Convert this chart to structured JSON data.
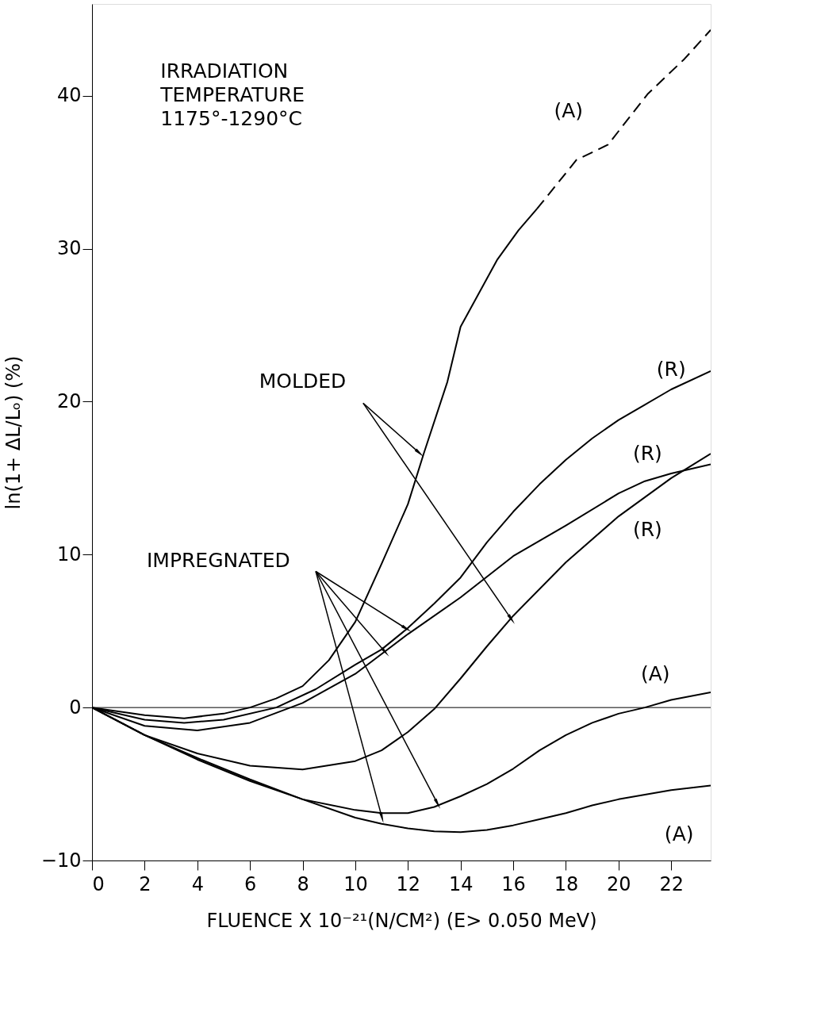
{
  "chart_data": {
    "type": "line",
    "xlabel": "FLUENCE X 10⁻²¹(N/CM²) (E> 0.050 MeV)",
    "ylabel": "ln(1+ ΔL/Lₒ) (%)",
    "xlim": [
      0,
      23.5
    ],
    "ylim": [
      -10,
      46
    ],
    "xticks": [
      0,
      2,
      4,
      6,
      8,
      10,
      12,
      14,
      16,
      18,
      20,
      22
    ],
    "yticks": [
      -10,
      0,
      10,
      20,
      30,
      40
    ],
    "grid": false,
    "marker": "none",
    "ref_lines": [
      {
        "axis": "y",
        "value": 0,
        "color": "#000000",
        "line_style": "solid"
      }
    ],
    "annotations": [
      "IRRADIATION\nTEMPERATURE\n1175°-1290°C",
      {
        "text": "MOLDED",
        "x": 12.4,
        "y": 16.7
      },
      {
        "text": "IMPREGNATED",
        "x": 11.9,
        "y": 5.2
      },
      "(A)",
      "(R)",
      "(R)",
      "(R)",
      "(A)",
      "(A)"
    ],
    "series": [
      {
        "color": "#000000",
        "line_style": "solid",
        "x": [
          0,
          2,
          3.5,
          5,
          6,
          7,
          8,
          9,
          10,
          11,
          12,
          12.6,
          13.5,
          14,
          14.7,
          15.4,
          16.2,
          16.9
        ],
        "values": [
          0,
          -0.5,
          -0.7,
          -0.4,
          0,
          0.6,
          1.4,
          3.1,
          5.6,
          9.4,
          13.3,
          16.6,
          21.3,
          24.9,
          27.1,
          29.3,
          31.2,
          32.6
        ]
      },
      {
        "color": "#000000",
        "line_style": "dashed",
        "x": [
          16.9,
          18.4,
          19.6,
          21.1,
          22.5,
          23.5
        ],
        "values": [
          32.6,
          35.8,
          36.8,
          40.1,
          42.4,
          44.3
        ]
      },
      {
        "color": "#000000",
        "line_style": "solid",
        "x": [
          0,
          2,
          3.5,
          5,
          7,
          8.5,
          10,
          11,
          12,
          13,
          14,
          15,
          16,
          17,
          18,
          19,
          20,
          21,
          22,
          23.5
        ],
        "values": [
          0,
          -0.8,
          -1.0,
          -0.8,
          0,
          1.2,
          2.8,
          3.8,
          5.2,
          6.8,
          8.5,
          10.8,
          12.8,
          14.6,
          16.2,
          17.6,
          18.8,
          19.8,
          20.8,
          22.0
        ]
      },
      {
        "color": "#000000",
        "line_style": "solid",
        "x": [
          0,
          2,
          4,
          6,
          8,
          10,
          12,
          14,
          16,
          18,
          20,
          21,
          22,
          23.5
        ],
        "values": [
          0,
          -1.2,
          -1.5,
          -1.0,
          0.3,
          2.2,
          4.8,
          7.2,
          9.9,
          11.9,
          14.0,
          14.8,
          15.3,
          15.9
        ]
      },
      {
        "color": "#000000",
        "line_style": "solid",
        "x": [
          0,
          2,
          4,
          6,
          8,
          10,
          11,
          12,
          13,
          14,
          15,
          16,
          18,
          20,
          22,
          23.5
        ],
        "values": [
          0,
          -1.8,
          -3.0,
          -3.8,
          -4.05,
          -3.5,
          -2.8,
          -1.6,
          -0.1,
          1.9,
          4.0,
          6.0,
          9.5,
          12.5,
          15.0,
          16.6
        ]
      },
      {
        "color": "#000000",
        "line_style": "solid",
        "x": [
          0,
          2,
          4,
          6,
          8,
          10,
          11,
          12,
          13,
          14,
          15,
          16,
          17,
          18,
          19,
          20,
          21,
          22,
          23.5
        ],
        "values": [
          0,
          -1.8,
          -3.4,
          -4.8,
          -6.0,
          -6.7,
          -6.9,
          -6.9,
          -6.5,
          -5.8,
          -5.0,
          -4.0,
          -2.8,
          -1.8,
          -1.0,
          -0.4,
          0,
          0.5,
          1.0
        ]
      },
      {
        "color": "#000000",
        "line_style": "solid",
        "x": [
          0,
          2,
          4,
          6,
          8,
          10,
          11,
          12,
          13,
          14,
          15,
          16,
          17,
          18,
          19,
          20,
          21,
          22,
          23.5
        ],
        "values": [
          0,
          -1.8,
          -3.3,
          -4.7,
          -6.0,
          -7.2,
          -7.6,
          -7.9,
          -8.1,
          -8.15,
          -8.0,
          -7.7,
          -7.3,
          -6.9,
          -6.4,
          -6.0,
          -5.7,
          -5.4,
          -5.1
        ]
      }
    ]
  }
}
